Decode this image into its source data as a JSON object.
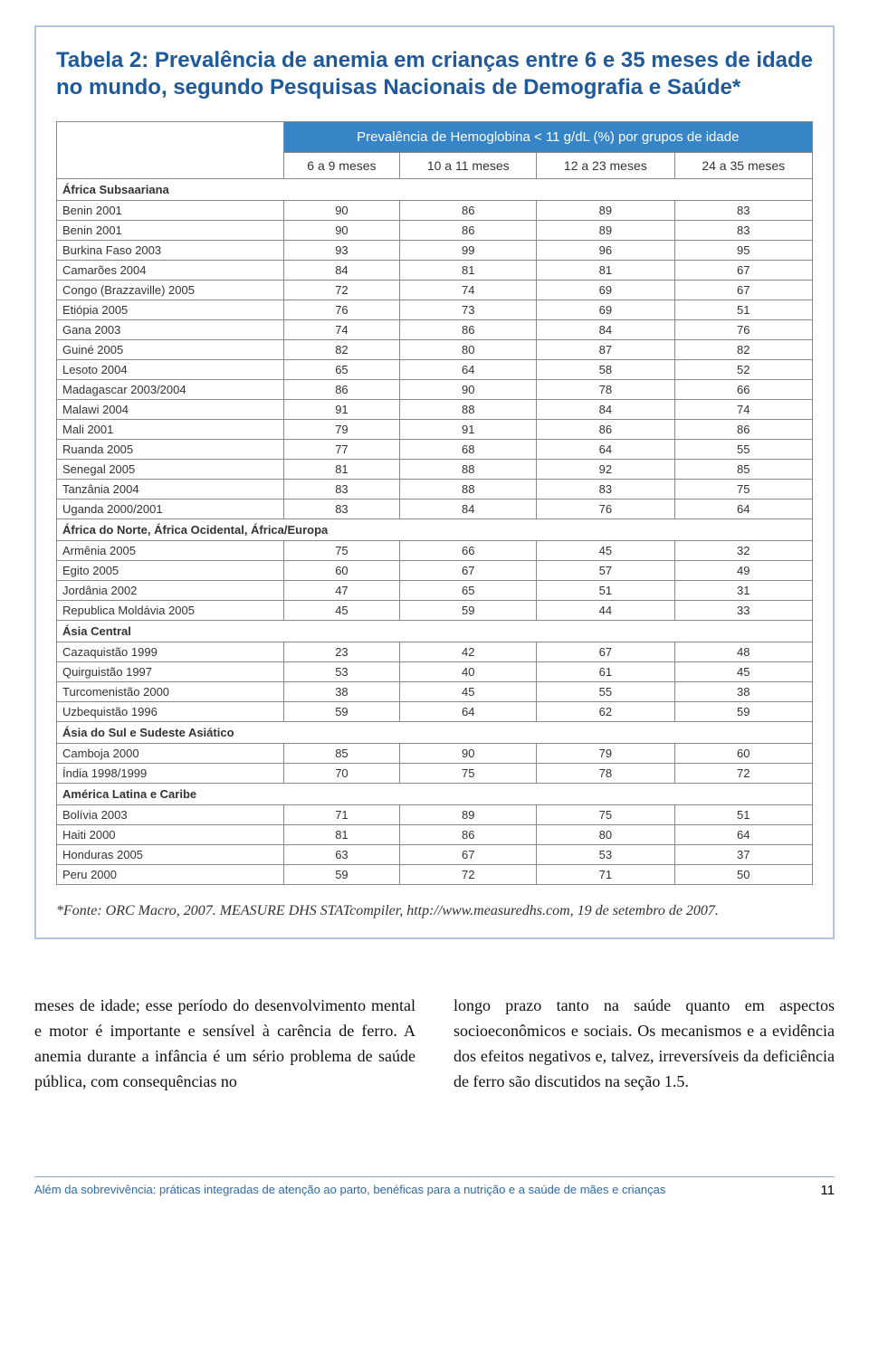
{
  "title": "Tabela 2: Prevalência de anemia em crianças entre 6 e 35 meses de idade no mundo, segundo Pesquisas Nacionais de Demografia e Saúde*",
  "table": {
    "spanning_header": "Prevalência de Hemoglobina < 11 g/dL (%) por grupos de idade",
    "columns": [
      "6 a 9 meses",
      "10 a 11 meses",
      "12 a 23 meses",
      "24 a 35 meses"
    ],
    "header_bg": "#3785c7",
    "header_fg": "#ffffff",
    "border_color": "#888888",
    "sections": [
      {
        "region": "África Subsaariana",
        "rows": [
          {
            "label": "Benin 2001",
            "vals": [
              90,
              86,
              89,
              83
            ]
          },
          {
            "label": "Benin 2001",
            "vals": [
              90,
              86,
              89,
              83
            ]
          },
          {
            "label": "Burkina Faso 2003",
            "vals": [
              93,
              99,
              96,
              95
            ]
          },
          {
            "label": "Camarões 2004",
            "vals": [
              84,
              81,
              81,
              67
            ]
          },
          {
            "label": "Congo (Brazzaville) 2005",
            "vals": [
              72,
              74,
              69,
              67
            ]
          },
          {
            "label": "Etiópia 2005",
            "vals": [
              76,
              73,
              69,
              51
            ]
          },
          {
            "label": "Gana 2003",
            "vals": [
              74,
              86,
              84,
              76
            ]
          },
          {
            "label": "Guiné 2005",
            "vals": [
              82,
              80,
              87,
              82
            ]
          },
          {
            "label": "Lesoto 2004",
            "vals": [
              65,
              64,
              58,
              52
            ]
          },
          {
            "label": "Madagascar 2003/2004",
            "vals": [
              86,
              90,
              78,
              66
            ]
          },
          {
            "label": "Malawi 2004",
            "vals": [
              91,
              88,
              84,
              74
            ]
          },
          {
            "label": "Mali 2001",
            "vals": [
              79,
              91,
              86,
              86
            ]
          },
          {
            "label": "Ruanda 2005",
            "vals": [
              77,
              68,
              64,
              55
            ]
          },
          {
            "label": "Senegal 2005",
            "vals": [
              81,
              88,
              92,
              85
            ]
          },
          {
            "label": "Tanzânia 2004",
            "vals": [
              83,
              88,
              83,
              75
            ]
          },
          {
            "label": "Uganda 2000/2001",
            "vals": [
              83,
              84,
              76,
              64
            ]
          }
        ]
      },
      {
        "region": "África do Norte, África Ocidental, África/Europa",
        "rows": [
          {
            "label": "Armênia 2005",
            "vals": [
              75,
              66,
              45,
              32
            ]
          },
          {
            "label": "Egito 2005",
            "vals": [
              60,
              67,
              57,
              49
            ]
          },
          {
            "label": "Jordânia 2002",
            "vals": [
              47,
              65,
              51,
              31
            ]
          },
          {
            "label": "Republica Moldávia 2005",
            "vals": [
              45,
              59,
              44,
              33
            ]
          }
        ]
      },
      {
        "region": "Ásia Central",
        "rows": [
          {
            "label": "Cazaquistão 1999",
            "vals": [
              23,
              42,
              67,
              48
            ]
          },
          {
            "label": "Quirguistão 1997",
            "vals": [
              53,
              40,
              61,
              45
            ]
          },
          {
            "label": "Turcomenistão 2000",
            "vals": [
              38,
              45,
              55,
              38
            ]
          },
          {
            "label": "Uzbequistão 1996",
            "vals": [
              59,
              64,
              62,
              59
            ]
          }
        ]
      },
      {
        "region": "Ásia do Sul e Sudeste Asiático",
        "rows": [
          {
            "label": "Camboja 2000",
            "vals": [
              85,
              90,
              79,
              60
            ]
          },
          {
            "label": "Índia 1998/1999",
            "vals": [
              70,
              75,
              78,
              72
            ]
          }
        ]
      },
      {
        "region": "América Latina e Caribe",
        "rows": [
          {
            "label": "Bolívia 2003",
            "vals": [
              71,
              89,
              75,
              51
            ]
          },
          {
            "label": "Haiti 2000",
            "vals": [
              81,
              86,
              80,
              64
            ]
          },
          {
            "label": "Honduras 2005",
            "vals": [
              63,
              67,
              53,
              37
            ]
          },
          {
            "label": "Peru 2000",
            "vals": [
              59,
              72,
              71,
              50
            ]
          }
        ]
      }
    ]
  },
  "source": "*Fonte: ORC Macro, 2007. MEASURE DHS STATcompiler, http://www.measuredhs.com, 19 de setembro de 2007.",
  "body": {
    "left": "meses de idade; esse período do desenvolvimento mental e motor é importante e sensível à carência de ferro. A anemia durante a infância é um sério problema de saúde pública, com consequências no",
    "right": "longo prazo tanto na saúde quanto em aspectos socioeconômicos e sociais. Os mecanismos e a evidência dos efeitos negativos e, talvez, irreversíveis da deficiência de ferro são discutidos na seção 1.5."
  },
  "footer": {
    "text": "Além da sobrevivência: práticas integradas de atenção ao parto, benéficas para a nutrição e a saúde de mães e crianças",
    "page": "11"
  }
}
